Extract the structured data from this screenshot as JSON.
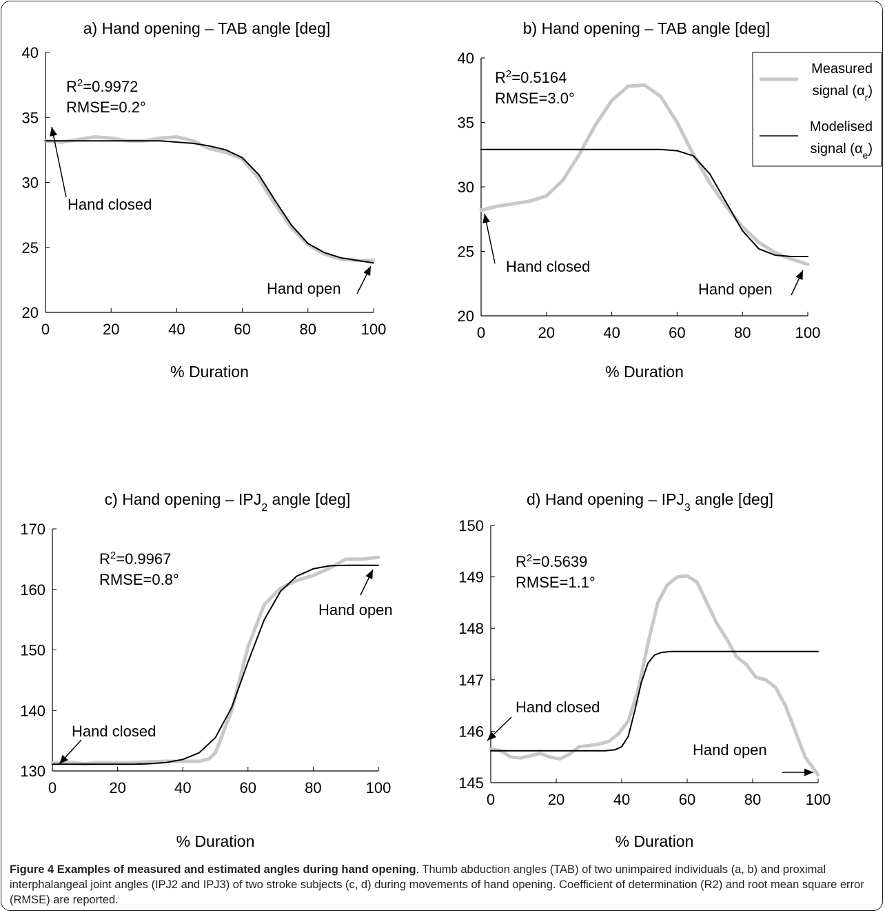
{
  "chart_data": [
    {
      "type": "line",
      "title": "a) Hand opening – TAB angle [deg]",
      "xlabel": "% Duration",
      "ylabel": "",
      "xlim": [
        0,
        100
      ],
      "ylim": [
        20,
        40
      ],
      "xticks": [
        "0",
        "20",
        "40",
        "60",
        "80",
        "100"
      ],
      "yticks": [
        "20",
        "25",
        "30",
        "35",
        "40"
      ],
      "stats": {
        "r2": "R²=0.9972",
        "rmse": "RMSE=0.2°"
      },
      "annotations": [
        {
          "text": "Hand closed",
          "x": 8,
          "y": 28
        },
        {
          "text": "Hand open",
          "x": 82,
          "y": 21.3
        }
      ],
      "series": [
        {
          "name": "Measured signal (αr)",
          "color": "#c8c8c8",
          "x": [
            0,
            5,
            10,
            15,
            20,
            25,
            30,
            35,
            40,
            45,
            50,
            55,
            60,
            65,
            70,
            75,
            80,
            85,
            90,
            95,
            100
          ],
          "y": [
            33.2,
            33.1,
            33.3,
            33.5,
            33.4,
            33.2,
            33.2,
            33.4,
            33.5,
            33.2,
            32.6,
            32.3,
            31.8,
            30.3,
            28.3,
            26.5,
            25.2,
            24.5,
            24.1,
            24.0,
            24.0
          ]
        },
        {
          "name": "Modelised signal (αe)",
          "color": "#000000",
          "x": [
            0,
            5,
            10,
            15,
            20,
            25,
            30,
            35,
            40,
            45,
            50,
            55,
            60,
            65,
            70,
            75,
            80,
            85,
            90,
            95,
            100
          ],
          "y": [
            33.2,
            33.2,
            33.2,
            33.2,
            33.2,
            33.2,
            33.2,
            33.2,
            33.1,
            33.0,
            32.8,
            32.5,
            31.9,
            30.6,
            28.6,
            26.7,
            25.3,
            24.6,
            24.2,
            24.0,
            23.8
          ]
        }
      ]
    },
    {
      "type": "line",
      "title": "b) Hand opening – TAB angle [deg]",
      "xlabel": "% Duration",
      "ylabel": "",
      "xlim": [
        0,
        100
      ],
      "ylim": [
        20,
        40
      ],
      "xticks": [
        "0",
        "20",
        "40",
        "60",
        "80",
        "100"
      ],
      "yticks": [
        "20",
        "25",
        "30",
        "35",
        "40"
      ],
      "stats": {
        "r2": "R²=0.5164",
        "rmse": "RMSE=3.0°"
      },
      "annotations": [
        {
          "text": "Hand closed",
          "x": 8,
          "y": 23.2
        },
        {
          "text": "Hand open",
          "x": 68,
          "y": 21.2
        }
      ],
      "series": [
        {
          "name": "Measured signal (αr)",
          "color": "#c8c8c8",
          "x": [
            0,
            5,
            10,
            15,
            20,
            25,
            30,
            35,
            40,
            45,
            50,
            55,
            60,
            65,
            70,
            75,
            80,
            85,
            90,
            95,
            100
          ],
          "y": [
            28.2,
            28.5,
            28.7,
            28.9,
            29.3,
            30.5,
            32.5,
            34.8,
            36.7,
            37.8,
            37.9,
            37.0,
            35.0,
            32.5,
            30.3,
            28.5,
            26.9,
            25.7,
            24.9,
            24.4,
            24.0
          ]
        },
        {
          "name": "Modelised signal (αe)",
          "color": "#000000",
          "x": [
            0,
            5,
            10,
            15,
            20,
            25,
            30,
            35,
            40,
            45,
            50,
            55,
            60,
            65,
            70,
            75,
            80,
            85,
            90,
            95,
            100
          ],
          "y": [
            32.9,
            32.9,
            32.9,
            32.9,
            32.9,
            32.9,
            32.9,
            32.9,
            32.9,
            32.9,
            32.9,
            32.9,
            32.8,
            32.4,
            31.0,
            28.8,
            26.6,
            25.2,
            24.7,
            24.6,
            24.6
          ]
        }
      ]
    },
    {
      "type": "line",
      "title": "c) Hand opening – IPJ2 angle [deg]",
      "xlabel": "% Duration",
      "ylabel": "",
      "xlim": [
        0,
        100
      ],
      "ylim": [
        130,
        170
      ],
      "xticks": [
        "0",
        "20",
        "40",
        "60",
        "80",
        "100"
      ],
      "yticks": [
        "130",
        "140",
        "150",
        "160",
        "170"
      ],
      "stats": {
        "r2": "R²=0.9967",
        "rmse": "RMSE=0.8°"
      },
      "annotations": [
        {
          "text": "Hand closed",
          "x": 6,
          "y": 137.5
        },
        {
          "text": "Hand open",
          "x": 81,
          "y": 158.5
        }
      ],
      "series": [
        {
          "name": "Measured signal (αr)",
          "color": "#c8c8c8",
          "x": [
            0,
            5,
            10,
            15,
            20,
            25,
            30,
            35,
            40,
            45,
            48,
            50,
            55,
            60,
            65,
            70,
            75,
            80,
            85,
            90,
            95,
            100
          ],
          "y": [
            131.3,
            131.4,
            131.2,
            131.4,
            131.3,
            131.4,
            131.5,
            131.6,
            131.6,
            131.6,
            132.0,
            133.0,
            140.0,
            150.5,
            157.5,
            160.2,
            161.5,
            162.3,
            163.5,
            165.0,
            165.0,
            165.3
          ]
        },
        {
          "name": "Modelised signal (αe)",
          "color": "#000000",
          "x": [
            0,
            5,
            10,
            15,
            20,
            25,
            30,
            35,
            40,
            45,
            50,
            55,
            60,
            65,
            70,
            75,
            80,
            85,
            90,
            95,
            100
          ],
          "y": [
            131.1,
            131.1,
            131.1,
            131.1,
            131.1,
            131.1,
            131.2,
            131.4,
            131.9,
            133.0,
            135.5,
            140.5,
            148.0,
            155.0,
            159.7,
            162.2,
            163.4,
            163.9,
            164.0,
            164.0,
            164.0
          ]
        }
      ]
    },
    {
      "type": "line",
      "title": "d) Hand opening – IPJ3 angle [deg]",
      "xlabel": "% Duration",
      "ylabel": "",
      "xlim": [
        0,
        100
      ],
      "ylim": [
        145,
        150
      ],
      "xticks": [
        "0",
        "20",
        "40",
        "60",
        "80",
        "100"
      ],
      "yticks": [
        "145",
        "146",
        "147",
        "148",
        "149",
        "150"
      ],
      "stats": {
        "r2": "R²=0.5639",
        "rmse": "RMSE=1.1°"
      },
      "annotations": [
        {
          "text": "Hand closed",
          "x": 8,
          "y": 146.2
        },
        {
          "text": "Hand open",
          "x": 62,
          "y": 145.15
        }
      ],
      "series": [
        {
          "name": "Measured signal (αr)",
          "color": "#c8c8c8",
          "x": [
            0,
            3,
            6,
            9,
            12,
            15,
            18,
            21,
            24,
            27,
            30,
            33,
            36,
            39,
            42,
            45,
            48,
            51,
            54,
            57,
            60,
            63,
            66,
            69,
            72,
            75,
            78,
            81,
            84,
            87,
            90,
            93,
            96,
            100
          ],
          "y": [
            145.65,
            145.62,
            145.5,
            145.48,
            145.52,
            145.57,
            145.5,
            145.46,
            145.55,
            145.7,
            145.72,
            145.75,
            145.8,
            145.95,
            146.2,
            146.8,
            147.7,
            148.5,
            148.85,
            149.0,
            149.02,
            148.9,
            148.5,
            148.1,
            147.8,
            147.45,
            147.3,
            147.05,
            147.0,
            146.85,
            146.5,
            146.0,
            145.5,
            145.15
          ]
        },
        {
          "name": "Modelised signal (αe)",
          "color": "#000000",
          "x": [
            0,
            5,
            10,
            15,
            20,
            25,
            30,
            35,
            38,
            40,
            42,
            44,
            46,
            48,
            50,
            52,
            55,
            60,
            70,
            80,
            90,
            100
          ],
          "y": [
            145.62,
            145.62,
            145.62,
            145.62,
            145.62,
            145.62,
            145.62,
            145.62,
            145.64,
            145.7,
            145.9,
            146.4,
            146.95,
            147.32,
            147.48,
            147.53,
            147.55,
            147.55,
            147.55,
            147.55,
            147.55,
            147.55
          ]
        }
      ]
    }
  ],
  "legend": {
    "measured_line1": "Measured",
    "measured_line2": "signal (α",
    "measured_sub": "r",
    "modelised_line1": "Modelised",
    "modelised_line2": "signal (α",
    "modelised_sub": "e",
    "close_paren": ")",
    "measured_color": "#c8c8c8",
    "modelised_color": "#000000"
  },
  "caption": {
    "bold": "Figure 4 Examples of measured and estimated angles during hand opening",
    "text": ". Thumb abduction angles (TAB) of two unimpaired individuals (a, b) and proximal interphalangeal joint angles (IPJ2 and IPJ3) of two stroke subjects (c, d) during movements of hand opening. Coefficient of determination (R2) and root mean square error (RMSE) are reported."
  }
}
